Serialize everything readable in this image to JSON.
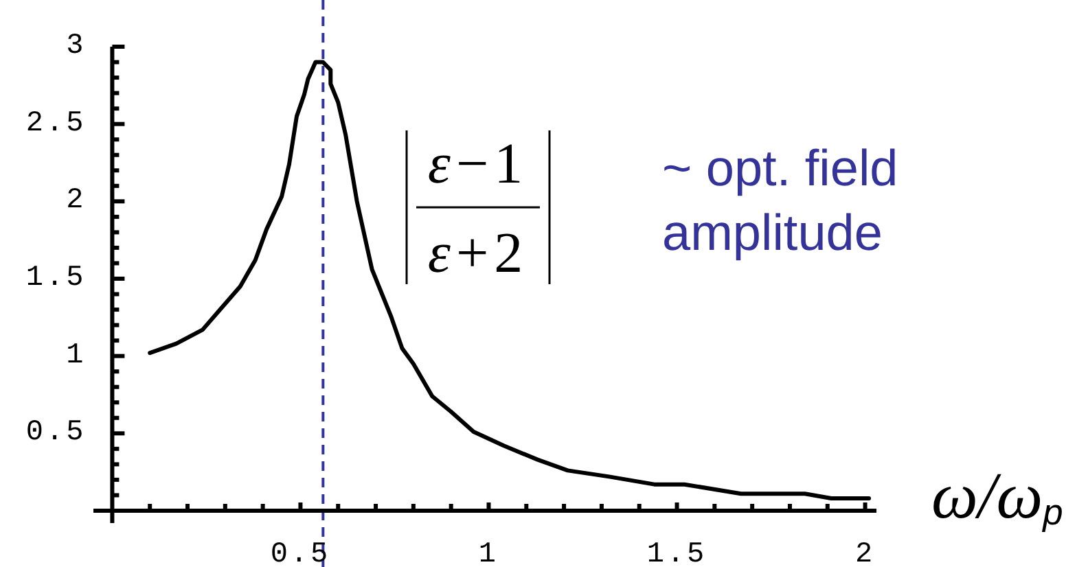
{
  "chart_data": {
    "type": "line",
    "xlabel": "ω/ω$_{p}$",
    "color": "#000000",
    "x": [
      0.1,
      0.17,
      0.24,
      0.29,
      0.34,
      0.38,
      0.41,
      0.45,
      0.47,
      0.49,
      0.51,
      0.52,
      0.54,
      0.56,
      0.58,
      0.58,
      0.6,
      0.62,
      0.65,
      0.69,
      0.74,
      0.77,
      0.8,
      0.85,
      0.9,
      0.96,
      1.04,
      1.13,
      1.21,
      1.32,
      1.44,
      1.52,
      1.67,
      1.84,
      1.91,
      2.01
    ],
    "values": [
      1.02,
      1.08,
      1.17,
      1.31,
      1.45,
      1.62,
      1.82,
      2.03,
      2.24,
      2.55,
      2.69,
      2.79,
      2.9,
      2.9,
      2.85,
      2.76,
      2.64,
      2.43,
      2.0,
      1.56,
      1.26,
      1.05,
      0.95,
      0.74,
      0.64,
      0.51,
      0.42,
      0.33,
      0.26,
      0.22,
      0.17,
      0.17,
      0.11,
      0.11,
      0.08,
      0.08
    ],
    "xlim": [
      -0.05,
      2.03
    ],
    "ylim": [
      -0.08,
      3
    ],
    "xticks": [
      {
        "value": 0.1,
        "label": null
      },
      {
        "value": 0.2,
        "label": null
      },
      {
        "value": 0.3,
        "label": null
      },
      {
        "value": 0.4,
        "label": null
      },
      0.5,
      {
        "value": 0.6,
        "label": null
      },
      {
        "value": 0.7,
        "label": null
      },
      {
        "value": 0.8,
        "label": null
      },
      {
        "value": 0.9,
        "label": null
      },
      1,
      {
        "value": 1.1,
        "label": null
      },
      {
        "value": 1.2,
        "label": null
      },
      {
        "value": 1.3,
        "label": null
      },
      {
        "value": 1.4,
        "label": null
      },
      1.5,
      {
        "value": 1.6,
        "label": null
      },
      {
        "value": 1.7,
        "label": null
      },
      {
        "value": 1.8,
        "label": null
      },
      {
        "value": 1.9,
        "label": null
      },
      2
    ],
    "yticks": [
      {
        "value": 0.1,
        "label": null
      },
      {
        "value": 0.2,
        "label": null
      },
      {
        "value": 0.3,
        "label": null
      },
      {
        "value": 0.4,
        "label": null
      },
      0.5,
      {
        "value": 0.6,
        "label": null
      },
      {
        "value": 0.7,
        "label": null
      },
      {
        "value": 0.8,
        "label": null
      },
      {
        "value": 0.9,
        "label": null
      },
      1,
      {
        "value": 1.1,
        "label": null
      },
      {
        "value": 1.2,
        "label": null
      },
      {
        "value": 1.3,
        "label": null
      },
      {
        "value": 1.4,
        "label": null
      },
      1.5,
      {
        "value": 1.6,
        "label": null
      },
      {
        "value": 1.7,
        "label": null
      },
      {
        "value": 1.8,
        "label": null
      },
      {
        "value": 1.9,
        "label": null
      },
      2,
      {
        "value": 2.1,
        "label": null
      },
      {
        "value": 2.2,
        "label": null
      },
      {
        "value": 2.3,
        "label": null
      },
      {
        "value": 2.4,
        "label": null
      },
      2.5,
      {
        "value": 2.6,
        "label": null
      },
      {
        "value": 2.7,
        "label": null
      },
      {
        "value": 2.8,
        "label": null
      },
      {
        "value": 2.9,
        "label": null
      },
      3
    ],
    "ref_lines": [
      {
        "axis": "x",
        "value": 0.56,
        "color": "#3333a0",
        "line_style": "dashed"
      }
    ],
    "annotations": [
      "ε−1",
      "ε+2",
      "~ opt. field amplitude"
    ]
  }
}
